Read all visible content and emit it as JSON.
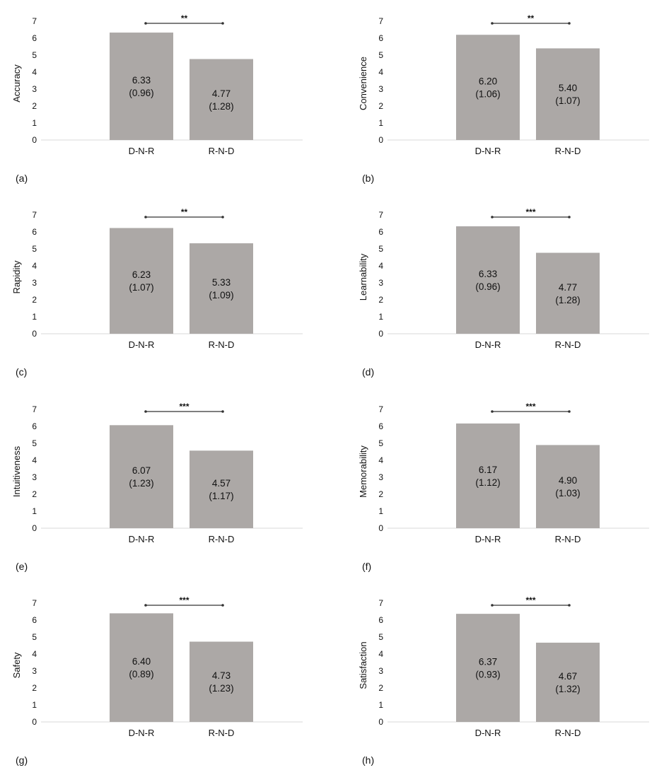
{
  "colors": {
    "bar": "#aca8a6",
    "axis": "#d9d9d9",
    "sig": "#333333"
  },
  "chart_data": [
    {
      "type": "bar",
      "panel_label": "(a)",
      "ylabel": "Accuracy",
      "categories": [
        "D-N-R",
        "R-N-D"
      ],
      "values": [
        6.33,
        4.77
      ],
      "sd": [
        0.96,
        1.28
      ],
      "value_labels": [
        "6.33",
        "4.77"
      ],
      "sd_labels": [
        "(0.96)",
        "(1.28)"
      ],
      "significance": "**",
      "ylim": [
        0,
        7
      ],
      "yticks": [
        "0",
        "1",
        "2",
        "3",
        "4",
        "5",
        "6",
        "7"
      ],
      "grid": false
    },
    {
      "type": "bar",
      "panel_label": "(b)",
      "ylabel": "Convenience",
      "categories": [
        "D-N-R",
        "R-N-D"
      ],
      "values": [
        6.2,
        5.4
      ],
      "sd": [
        1.06,
        1.07
      ],
      "value_labels": [
        "6.20",
        "5.40"
      ],
      "sd_labels": [
        "(1.06)",
        "(1.07)"
      ],
      "significance": "**",
      "ylim": [
        0,
        7
      ],
      "yticks": [
        "0",
        "1",
        "2",
        "3",
        "4",
        "5",
        "6",
        "7"
      ],
      "grid": false
    },
    {
      "type": "bar",
      "panel_label": "(c)",
      "ylabel": "Rapidity",
      "categories": [
        "D-N-R",
        "R-N-D"
      ],
      "values": [
        6.23,
        5.33
      ],
      "sd": [
        1.07,
        1.09
      ],
      "value_labels": [
        "6.23",
        "5.33"
      ],
      "sd_labels": [
        "(1.07)",
        "(1.09)"
      ],
      "significance": "**",
      "ylim": [
        0,
        7
      ],
      "yticks": [
        "0",
        "1",
        "2",
        "3",
        "4",
        "5",
        "6",
        "7"
      ],
      "grid": false
    },
    {
      "type": "bar",
      "panel_label": "(d)",
      "ylabel": "Learnability",
      "categories": [
        "D-N-R",
        "R-N-D"
      ],
      "values": [
        6.33,
        4.77
      ],
      "sd": [
        0.96,
        1.28
      ],
      "value_labels": [
        "6.33",
        "4.77"
      ],
      "sd_labels": [
        "(0.96)",
        "(1.28)"
      ],
      "significance": "***",
      "ylim": [
        0,
        7
      ],
      "yticks": [
        "0",
        "1",
        "2",
        "3",
        "4",
        "5",
        "6",
        "7"
      ],
      "grid": false
    },
    {
      "type": "bar",
      "panel_label": "(e)",
      "ylabel": "Intuitiveness",
      "categories": [
        "D-N-R",
        "R-N-D"
      ],
      "values": [
        6.07,
        4.57
      ],
      "sd": [
        1.23,
        1.17
      ],
      "value_labels": [
        "6.07",
        "4.57"
      ],
      "sd_labels": [
        "(1.23)",
        "(1.17)"
      ],
      "significance": "***",
      "ylim": [
        0,
        7
      ],
      "yticks": [
        "0",
        "1",
        "2",
        "3",
        "4",
        "5",
        "6",
        "7"
      ],
      "grid": false
    },
    {
      "type": "bar",
      "panel_label": "(f)",
      "ylabel": "Memorability",
      "categories": [
        "D-N-R",
        "R-N-D"
      ],
      "values": [
        6.17,
        4.9
      ],
      "sd": [
        1.12,
        1.03
      ],
      "value_labels": [
        "6.17",
        "4.90"
      ],
      "sd_labels": [
        "(1.12)",
        "(1.03)"
      ],
      "significance": "***",
      "ylim": [
        0,
        7
      ],
      "yticks": [
        "0",
        "1",
        "2",
        "3",
        "4",
        "5",
        "6",
        "7"
      ],
      "grid": false
    },
    {
      "type": "bar",
      "panel_label": "(g)",
      "ylabel": "Safety",
      "categories": [
        "D-N-R",
        "R-N-D"
      ],
      "values": [
        6.4,
        4.73
      ],
      "sd": [
        0.89,
        1.23
      ],
      "value_labels": [
        "6.40",
        "4.73"
      ],
      "sd_labels": [
        "(0.89)",
        "(1.23)"
      ],
      "significance": "***",
      "ylim": [
        0,
        7
      ],
      "yticks": [
        "0",
        "1",
        "2",
        "3",
        "4",
        "5",
        "6",
        "7"
      ],
      "grid": false
    },
    {
      "type": "bar",
      "panel_label": "(h)",
      "ylabel": "Satisfaction",
      "categories": [
        "D-N-R",
        "R-N-D"
      ],
      "values": [
        6.37,
        4.67
      ],
      "sd": [
        0.93,
        1.32
      ],
      "value_labels": [
        "6.37",
        "4.67"
      ],
      "sd_labels": [
        "(0.93)",
        "(1.32)"
      ],
      "significance": "***",
      "ylim": [
        0,
        7
      ],
      "yticks": [
        "0",
        "1",
        "2",
        "3",
        "4",
        "5",
        "6",
        "7"
      ],
      "grid": false
    }
  ]
}
